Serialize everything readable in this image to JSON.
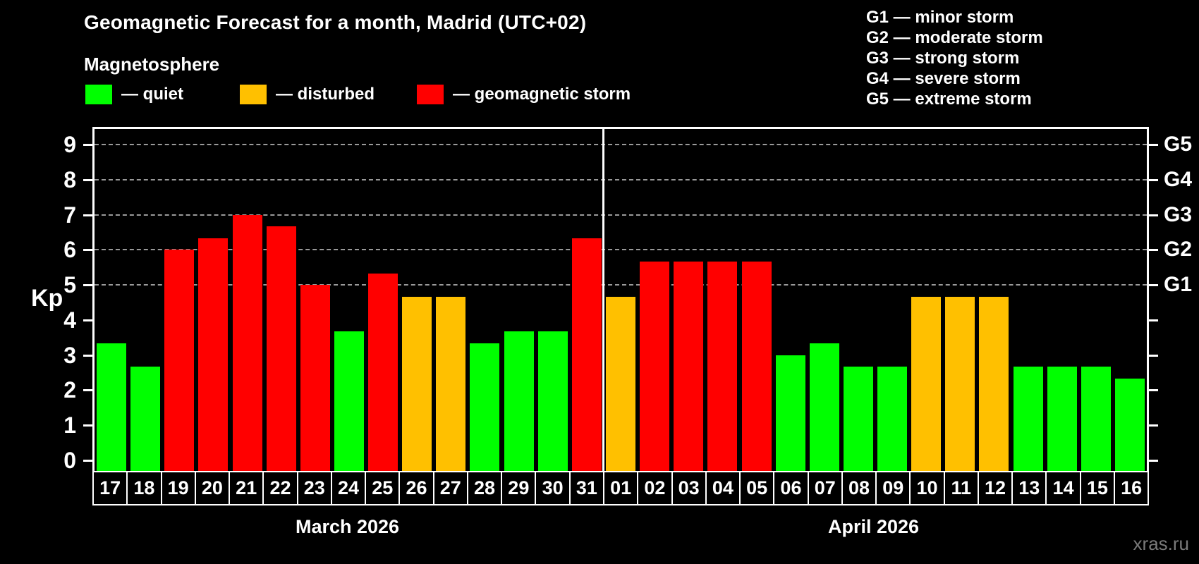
{
  "title": "Geomagnetic Forecast for a month, Madrid (UTC+02)",
  "subtitle": "Magnetosphere",
  "watermark": "xras.ru",
  "colors": {
    "quiet": "#00ff00",
    "disturbed": "#ffc000",
    "storm": "#ff0000",
    "axis": "#ffffff",
    "grid": "#9a9a9a",
    "background": "#000000",
    "watermark": "#7a7a7a"
  },
  "legend": {
    "items": [
      {
        "key": "quiet",
        "label": "— quiet",
        "color": "#00ff00"
      },
      {
        "key": "disturbed",
        "label": "— disturbed",
        "color": "#ffc000"
      },
      {
        "key": "storm",
        "label": "— geomagnetic storm",
        "color": "#ff0000"
      }
    ]
  },
  "g_legend": [
    "G1 — minor storm",
    "G2 — moderate storm",
    "G3 — strong storm",
    "G4 — severe storm",
    "G5 — extreme storm"
  ],
  "chart_data": {
    "type": "bar",
    "title": "Geomagnetic Forecast for a month, Madrid (UTC+02)",
    "xlabel": "",
    "ylabel": "Kp",
    "ylim": [
      0,
      9
    ],
    "grid": "dashed horizontal",
    "gridlines": [
      5,
      6,
      7,
      8,
      9
    ],
    "left_ticks": [
      0,
      1,
      2,
      3,
      4,
      5,
      6,
      7,
      8,
      9
    ],
    "right_minor_ticks": [
      0,
      1,
      2,
      3,
      4
    ],
    "right_labeled_ticks": [
      {
        "value": 5,
        "label": "G1"
      },
      {
        "value": 6,
        "label": "G2"
      },
      {
        "value": 7,
        "label": "G3"
      },
      {
        "value": 8,
        "label": "G4"
      },
      {
        "value": 9,
        "label": "G5"
      }
    ],
    "legend_position": "top-left",
    "months": [
      {
        "label": "March 2026",
        "days": [
          {
            "day": "17",
            "kp": 3.33,
            "state": "quiet"
          },
          {
            "day": "18",
            "kp": 2.67,
            "state": "quiet"
          },
          {
            "day": "19",
            "kp": 6.0,
            "state": "storm"
          },
          {
            "day": "20",
            "kp": 6.33,
            "state": "storm"
          },
          {
            "day": "21",
            "kp": 7.0,
            "state": "storm"
          },
          {
            "day": "22",
            "kp": 6.67,
            "state": "storm"
          },
          {
            "day": "23",
            "kp": 5.0,
            "state": "storm"
          },
          {
            "day": "24",
            "kp": 3.67,
            "state": "quiet"
          },
          {
            "day": "25",
            "kp": 5.33,
            "state": "storm"
          },
          {
            "day": "26",
            "kp": 4.67,
            "state": "disturbed"
          },
          {
            "day": "27",
            "kp": 4.67,
            "state": "disturbed"
          },
          {
            "day": "28",
            "kp": 3.33,
            "state": "quiet"
          },
          {
            "day": "29",
            "kp": 3.67,
            "state": "quiet"
          },
          {
            "day": "30",
            "kp": 3.67,
            "state": "quiet"
          },
          {
            "day": "31",
            "kp": 6.33,
            "state": "storm"
          }
        ]
      },
      {
        "label": "April 2026",
        "days": [
          {
            "day": "01",
            "kp": 4.67,
            "state": "disturbed"
          },
          {
            "day": "02",
            "kp": 5.67,
            "state": "storm"
          },
          {
            "day": "03",
            "kp": 5.67,
            "state": "storm"
          },
          {
            "day": "04",
            "kp": 5.67,
            "state": "storm"
          },
          {
            "day": "05",
            "kp": 5.67,
            "state": "storm"
          },
          {
            "day": "06",
            "kp": 3.0,
            "state": "quiet"
          },
          {
            "day": "07",
            "kp": 3.33,
            "state": "quiet"
          },
          {
            "day": "08",
            "kp": 2.67,
            "state": "quiet"
          },
          {
            "day": "09",
            "kp": 2.67,
            "state": "quiet"
          },
          {
            "day": "10",
            "kp": 4.67,
            "state": "disturbed"
          },
          {
            "day": "11",
            "kp": 4.67,
            "state": "disturbed"
          },
          {
            "day": "12",
            "kp": 4.67,
            "state": "disturbed"
          },
          {
            "day": "13",
            "kp": 2.67,
            "state": "quiet"
          },
          {
            "day": "14",
            "kp": 2.67,
            "state": "quiet"
          },
          {
            "day": "15",
            "kp": 2.67,
            "state": "quiet"
          },
          {
            "day": "16",
            "kp": 2.33,
            "state": "quiet"
          }
        ]
      }
    ]
  }
}
